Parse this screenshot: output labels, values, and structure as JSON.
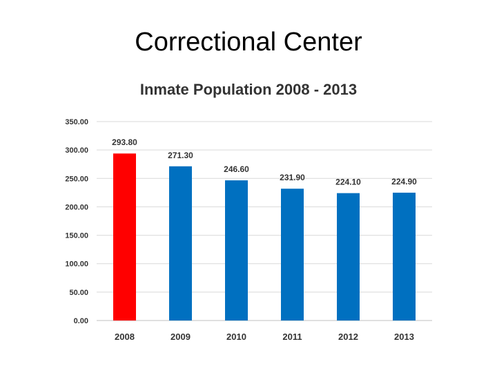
{
  "slide": {
    "title": "Correctional Center"
  },
  "colors": {
    "highlight": "#ff0000",
    "bar": "#0070c0",
    "grid": "#d9d9d9",
    "axis": "#bfbfbf"
  },
  "chart_data": {
    "type": "bar",
    "title": "Inmate Population 2008 - 2013",
    "xlabel": "",
    "ylabel": "",
    "categories": [
      "2008",
      "2009",
      "2010",
      "2011",
      "2012",
      "2013"
    ],
    "values": [
      293.8,
      271.3,
      246.6,
      231.9,
      224.1,
      224.9
    ],
    "data_labels": [
      "293.80",
      "271.30",
      "246.60",
      "231.90",
      "224.10",
      "224.90"
    ],
    "highlight_index": 0,
    "ylim": [
      0,
      350
    ],
    "yticks": [
      "0.00",
      "50.00",
      "100.00",
      "150.00",
      "200.00",
      "250.00",
      "300.00",
      "350.00"
    ],
    "grid": true,
    "legend": "none"
  }
}
